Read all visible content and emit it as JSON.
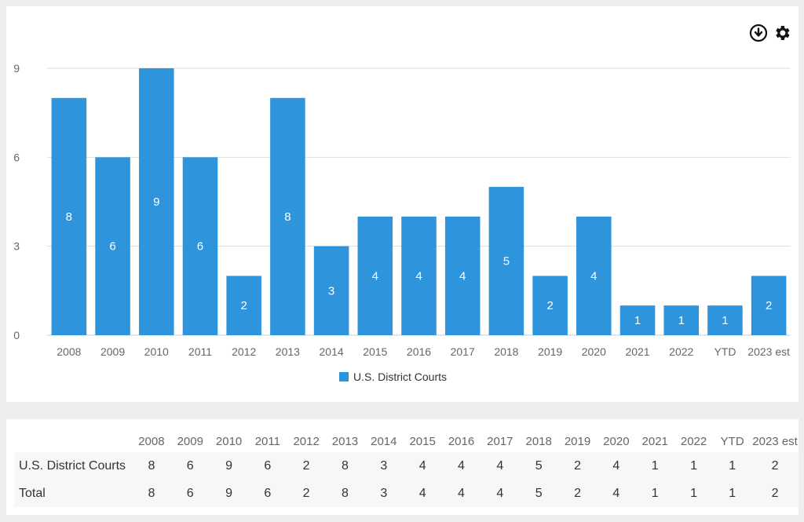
{
  "toolbar": {
    "download_icon": "download-circle-icon",
    "settings_icon": "gear-icon"
  },
  "chart_data": {
    "type": "bar",
    "categories": [
      "2008",
      "2009",
      "2010",
      "2011",
      "2012",
      "2013",
      "2014",
      "2015",
      "2016",
      "2017",
      "2018",
      "2019",
      "2020",
      "2021",
      "2022",
      "YTD",
      "2023 est"
    ],
    "series": [
      {
        "name": "U.S. District Courts",
        "values": [
          8,
          6,
          9,
          6,
          2,
          8,
          3,
          4,
          4,
          4,
          5,
          2,
          4,
          1,
          1,
          1,
          2
        ],
        "color": "#2e95dd"
      }
    ],
    "title": "",
    "xlabel": "",
    "ylabel": "",
    "ylim": [
      0,
      9
    ],
    "yticks": [
      0,
      3,
      6,
      9
    ],
    "grid": true,
    "legend": "bottom-center",
    "data_labels": true
  },
  "table": {
    "headers": [
      "2008",
      "2009",
      "2010",
      "2011",
      "2012",
      "2013",
      "2014",
      "2015",
      "2016",
      "2017",
      "2018",
      "2019",
      "2020",
      "2021",
      "2022",
      "YTD",
      "2023 est"
    ],
    "rows": [
      {
        "label": "U.S. District Courts",
        "values": [
          "8",
          "6",
          "9",
          "6",
          "2",
          "8",
          "3",
          "4",
          "4",
          "4",
          "5",
          "2",
          "4",
          "1",
          "1",
          "1",
          "2"
        ]
      },
      {
        "label": "Total",
        "values": [
          "8",
          "6",
          "9",
          "6",
          "2",
          "8",
          "3",
          "4",
          "4",
          "4",
          "5",
          "2",
          "4",
          "1",
          "1",
          "1",
          "2"
        ]
      }
    ]
  }
}
